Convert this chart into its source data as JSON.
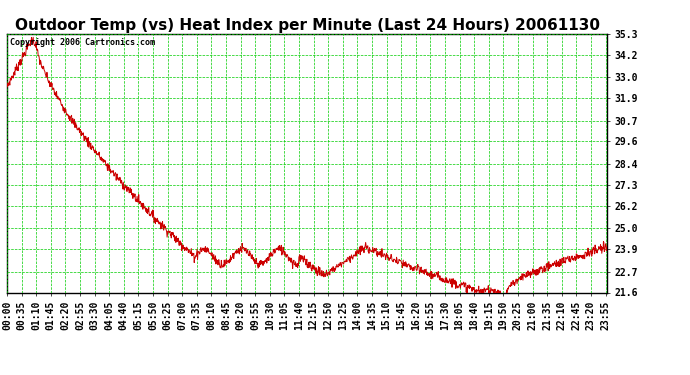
{
  "title": "Outdoor Temp (vs) Heat Index per Minute (Last 24 Hours) 20061130",
  "copyright_text": "Copyright 2006 Cartronics.com",
  "ylabel_right_ticks": [
    35.3,
    34.2,
    33.0,
    31.9,
    30.7,
    29.6,
    28.4,
    27.3,
    26.2,
    25.0,
    23.9,
    22.7,
    21.6
  ],
  "ymin": 21.6,
  "ymax": 35.3,
  "background_color": "#ffffff",
  "grid_color": "#00cc00",
  "line_color": "#cc0000",
  "title_fontsize": 11,
  "copyright_fontsize": 6,
  "tick_fontsize": 7,
  "x_tick_labels": [
    "00:00",
    "00:35",
    "01:10",
    "01:45",
    "02:20",
    "02:55",
    "03:30",
    "04:05",
    "04:40",
    "05:15",
    "05:50",
    "06:25",
    "07:00",
    "07:35",
    "08:10",
    "08:45",
    "09:20",
    "09:55",
    "10:30",
    "11:05",
    "11:40",
    "12:15",
    "12:50",
    "13:25",
    "14:00",
    "14:35",
    "15:10",
    "15:45",
    "16:20",
    "16:55",
    "17:30",
    "18:05",
    "18:40",
    "19:15",
    "19:50",
    "20:25",
    "21:00",
    "21:35",
    "22:10",
    "22:45",
    "23:20",
    "23:55"
  ]
}
